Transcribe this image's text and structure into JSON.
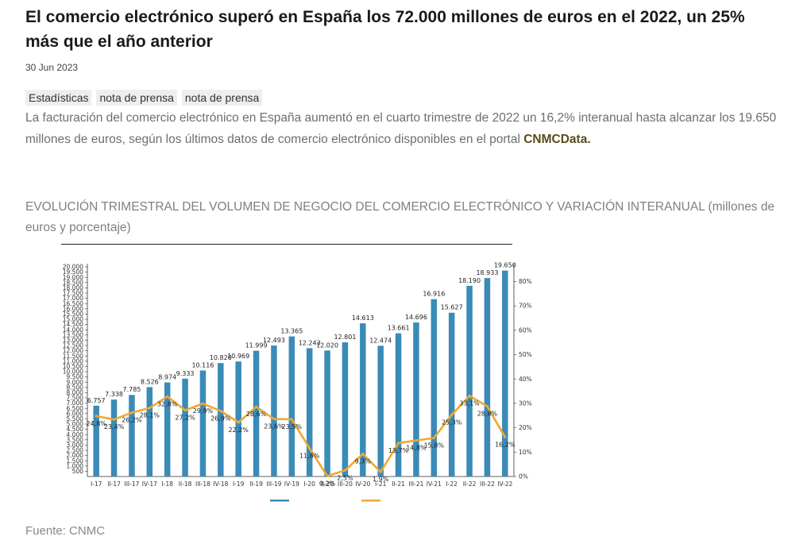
{
  "article": {
    "title": "El comercio electrónico superó en España los 72.000 millones de euros en el 2022, un 25% más que el año anterior",
    "date": "30 Jun 2023",
    "tags": [
      "Estadísticas",
      "nota de prensa",
      "nota de prensa"
    ],
    "lead_text": "La facturación del comercio electrónico en España aumentó en el cuarto trimestre de 2022 un 16,2% interanual hasta alcanzar los 19.650 millones de euros, según los últimos datos de comercio electrónico disponibles en el portal ",
    "lead_link": "CNMCData.",
    "chart_heading": "EVOLUCIÓN TRIMESTRAL DEL VOLUMEN DE NEGOCIO DEL COMERCIO ELECTRÓNICO Y VARIACIÓN INTERANUAL (millones de euros y porcentaje)",
    "source": "Fuente: CNMC"
  },
  "colors": {
    "bar": "#3a8bb8",
    "line": "#f0a830",
    "axis": "#333333"
  },
  "chart_data": {
    "type": "bar",
    "categories": [
      "I-17",
      "II-17",
      "III-17",
      "IV-17",
      "I-18",
      "II-18",
      "III-18",
      "IV-18",
      "I-19",
      "II-19",
      "III-19",
      "IV-19",
      "I-20",
      "II-20",
      "III-20",
      "IV-20",
      "I-21",
      "II-21",
      "III-21",
      "IV-21",
      "I-22",
      "II-22",
      "III-22",
      "IV-22"
    ],
    "series": [
      {
        "axis": "left",
        "kind": "bar",
        "values": [
          6757,
          7338,
          7785,
          8526,
          8974,
          9333,
          10116,
          10820,
          10969,
          11999,
          12493,
          13365,
          12243,
          12020,
          12801,
          14613,
          12474,
          13661,
          14696,
          16916,
          15627,
          18190,
          18933,
          19650
        ],
        "labels": [
          "6.757",
          "7.338",
          "7.785",
          "8.526",
          "8.974",
          "9.333",
          "10.116",
          "10.820",
          "10.969",
          "11.999",
          "12.493",
          "13.365",
          "12.243",
          "12.020",
          "12.801",
          "14.613",
          "12.474",
          "13.661",
          "14.696",
          "16.916",
          "15.627",
          "18.190",
          "18.933",
          "19.650"
        ]
      },
      {
        "axis": "right",
        "kind": "line",
        "values": [
          24.8,
          23.4,
          26.2,
          28.1,
          32.8,
          27.2,
          29.9,
          26.9,
          22.2,
          28.6,
          23.6,
          23.5,
          11.6,
          0.2,
          2.5,
          9.3,
          1.9,
          13.7,
          14.8,
          15.8,
          25.3,
          33.1,
          28.8,
          16.2
        ],
        "labels": [
          "24,8%",
          "23,4%",
          "26,2%",
          "28,1%",
          "32,8%",
          "27,2%",
          "29,9%",
          "26,9%",
          "22,2%",
          "28,6%",
          "23,6%",
          "23,5%",
          "11,6%",
          "0,2%",
          "2,5%",
          "9,3%",
          "1,9%",
          "13,7%",
          "14,8%",
          "15,8%",
          "25,3%",
          "33,1%",
          "28,8%",
          "16,2%"
        ]
      }
    ],
    "y_left": {
      "range": [
        0,
        20000
      ],
      "ticks": [
        "500",
        "1.000",
        "1.500",
        "2.000",
        "2.500",
        "3.000",
        "3.500",
        "4.000",
        "4.500",
        "5.000",
        "5.500",
        "6.000",
        "6.500",
        "7.000",
        "7.500",
        "8.000",
        "8.500",
        "9.000",
        "9.500",
        "10.000",
        "10.500",
        "11.000",
        "11.500",
        "12.000",
        "12.500",
        "13.000",
        "13.500",
        "14.000",
        "14.500",
        "15.000",
        "15.500",
        "16.000",
        "16.500",
        "17.000",
        "17.500",
        "18.000",
        "18.500",
        "19.000",
        "19.500",
        "20.000"
      ]
    },
    "y_right": {
      "range": [
        0,
        86
      ],
      "ticks": [
        "0%",
        "10%",
        "20%",
        "30%",
        "40%",
        "50%",
        "60%",
        "70%",
        "80%"
      ]
    },
    "legend": {
      "placement": "bottom",
      "entries": [
        "",
        ""
      ]
    },
    "grid": false
  }
}
